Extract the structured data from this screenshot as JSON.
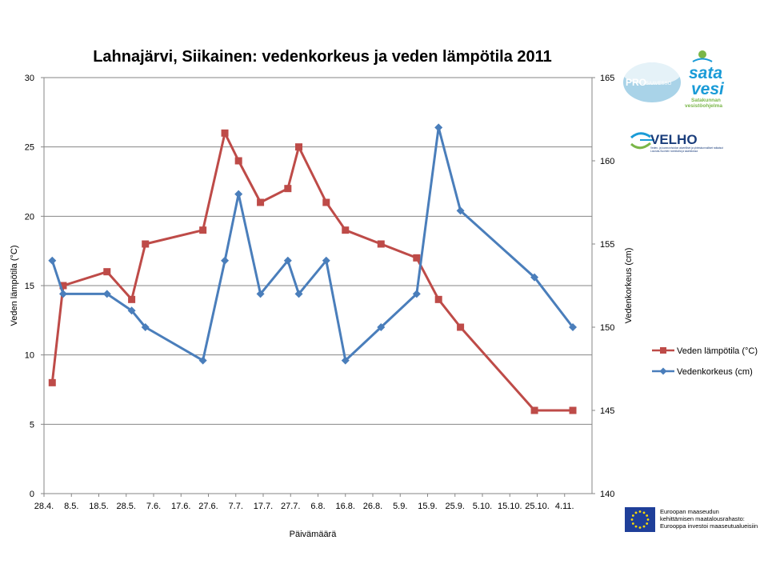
{
  "chart_data": {
    "type": "line",
    "title": "Lahnajärvi, Siikainen: vedenkorkeus ja veden lämpötila 2011",
    "xlabel": "Päivämäärä",
    "ylabel_left": "Veden lämpötila (°C)",
    "ylabel_right": "Vedenkorkeus (cm)",
    "ylim_left": [
      0,
      30
    ],
    "ylim_right": [
      140,
      165
    ],
    "yticks_left": [
      "0",
      "5",
      "10",
      "15",
      "20",
      "25",
      "30"
    ],
    "yticks_right": [
      "140",
      "145",
      "150",
      "155",
      "160",
      "165"
    ],
    "x_day_range": [
      0,
      200
    ],
    "xticks": [
      {
        "label": "28.4.",
        "day": 0
      },
      {
        "label": "8.5.",
        "day": 10
      },
      {
        "label": "18.5.",
        "day": 20
      },
      {
        "label": "28.5.",
        "day": 30
      },
      {
        "label": "7.6.",
        "day": 40
      },
      {
        "label": "17.6.",
        "day": 50
      },
      {
        "label": "27.6.",
        "day": 60
      },
      {
        "label": "7.7.",
        "day": 70
      },
      {
        "label": "17.7.",
        "day": 80
      },
      {
        "label": "27.7.",
        "day": 90
      },
      {
        "label": "6.8.",
        "day": 100
      },
      {
        "label": "16.8.",
        "day": 110
      },
      {
        "label": "26.8.",
        "day": 120
      },
      {
        "label": "5.9.",
        "day": 130
      },
      {
        "label": "15.9.",
        "day": 140
      },
      {
        "label": "25.9.",
        "day": 150
      },
      {
        "label": "5.10.",
        "day": 160
      },
      {
        "label": "15.10.",
        "day": 170
      },
      {
        "label": "25.10.",
        "day": 180
      },
      {
        "label": "4.11.",
        "day": 190
      }
    ],
    "grid": true,
    "legend_position": "right",
    "series": [
      {
        "name": "Veden lämpötila (°C)",
        "axis": "left",
        "color": "#be4b48",
        "marker": "square",
        "points": [
          {
            "day": 3,
            "value": 8
          },
          {
            "day": 7,
            "value": 15
          },
          {
            "day": 23,
            "value": 16
          },
          {
            "day": 32,
            "value": 14
          },
          {
            "day": 37,
            "value": 18
          },
          {
            "day": 58,
            "value": 19
          },
          {
            "day": 66,
            "value": 26
          },
          {
            "day": 71,
            "value": 24
          },
          {
            "day": 79,
            "value": 21
          },
          {
            "day": 89,
            "value": 22
          },
          {
            "day": 93,
            "value": 25
          },
          {
            "day": 103,
            "value": 21
          },
          {
            "day": 110,
            "value": 19
          },
          {
            "day": 123,
            "value": 18
          },
          {
            "day": 136,
            "value": 17
          },
          {
            "day": 144,
            "value": 14
          },
          {
            "day": 152,
            "value": 12
          },
          {
            "day": 179,
            "value": 6
          },
          {
            "day": 193,
            "value": 6
          }
        ]
      },
      {
        "name": "Vedenkorkeus (cm)",
        "axis": "right",
        "color": "#4a7ebb",
        "marker": "diamond",
        "points": [
          {
            "day": 3,
            "value": 154
          },
          {
            "day": 7,
            "value": 152
          },
          {
            "day": 23,
            "value": 152
          },
          {
            "day": 32,
            "value": 151
          },
          {
            "day": 37,
            "value": 150
          },
          {
            "day": 58,
            "value": 148
          },
          {
            "day": 66,
            "value": 154
          },
          {
            "day": 71,
            "value": 158
          },
          {
            "day": 79,
            "value": 152
          },
          {
            "day": 89,
            "value": 154
          },
          {
            "day": 93,
            "value": 152
          },
          {
            "day": 103,
            "value": 154
          },
          {
            "day": 110,
            "value": 148
          },
          {
            "day": 123,
            "value": 150
          },
          {
            "day": 136,
            "value": 152
          },
          {
            "day": 144,
            "value": 162
          },
          {
            "day": 152,
            "value": 157
          },
          {
            "day": 179,
            "value": 153
          },
          {
            "day": 193,
            "value": 150
          }
        ]
      }
    ]
  },
  "logos": {
    "pro_text": "PRO",
    "pro_subtext": "SAAVESSO",
    "satavesi_line1": "sata",
    "satavesi_line2": "vesi",
    "satavesi_sub1": "Satakunnan",
    "satavesi_sub2": "vesistöohjelma",
    "velho_name": "VELHO",
    "velho_sub1": "Veden- ja luonnonhoidon alueelliset ja yhteiskunnalliset ratkaisut",
    "velho_sub2": "Lounais-Suomen rannikolla ja saaristossa"
  },
  "eu_note": {
    "line1": "Euroopan maaseudun",
    "line2": "kehittämisen maatalousrahasto:",
    "line3": "Eurooppa investoi maaseutualueisiin"
  },
  "colors": {
    "temperature": "#be4b48",
    "water_level": "#4a7ebb",
    "grid": "#868686",
    "eu_blue": "#1f3f99",
    "eu_star": "#ffdd00"
  }
}
